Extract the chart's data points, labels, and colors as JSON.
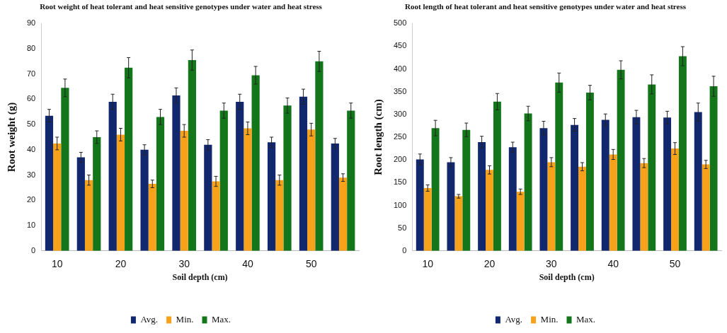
{
  "chart_data": [
    {
      "type": "bar",
      "title": "Root weight of heat tolerant and heat sensitive genotypes under water and heat stress",
      "xlabel": "Soil depth (cm)",
      "ylabel": "Root weight (g)",
      "categories": [
        "10",
        null,
        "20",
        null,
        "30",
        null,
        "40",
        null,
        "50",
        null
      ],
      "ylim": [
        0,
        90
      ],
      "yticks": [
        0,
        10,
        20,
        30,
        40,
        50,
        60,
        70,
        80,
        90
      ],
      "grid": false,
      "legend": "bottom",
      "series": [
        {
          "name": "Avg.",
          "color": "#12286e",
          "values": [
            53.5,
            37,
            59,
            40,
            61.5,
            42,
            59,
            43,
            61,
            42.5
          ],
          "errors": [
            2.5,
            2,
            3,
            2,
            3,
            2,
            3,
            2,
            3,
            2
          ]
        },
        {
          "name": "Min.",
          "color": "#f7a21b",
          "values": [
            42.5,
            28,
            46,
            26.5,
            47.5,
            27.5,
            48.5,
            28,
            48,
            29
          ],
          "errors": [
            2.5,
            2,
            2.5,
            1.5,
            2.5,
            2,
            2.5,
            2,
            2.5,
            1.5
          ]
        },
        {
          "name": "Max.",
          "color": "#13761a",
          "values": [
            64.5,
            45,
            72.5,
            53,
            75.5,
            55.5,
            69.5,
            57.5,
            75,
            55.5
          ],
          "errors": [
            3.5,
            2.5,
            4,
            3,
            4,
            3,
            3.5,
            3,
            4,
            3
          ]
        }
      ]
    },
    {
      "type": "bar",
      "title": "Root length of heat tolerant and heat sensitive genotypes under water and heat stress",
      "xlabel": "Soil depth (cm)",
      "ylabel": "Root length (cm)",
      "categories": [
        "10",
        null,
        "20",
        null,
        "30",
        null,
        "40",
        null,
        "50",
        null
      ],
      "ylim": [
        0,
        500
      ],
      "yticks": [
        0,
        50,
        100,
        150,
        200,
        250,
        300,
        350,
        400,
        450,
        500
      ],
      "grid": false,
      "legend": "bottom",
      "series": [
        {
          "name": "Avg.",
          "color": "#12286e",
          "values": [
            201,
            195,
            239,
            228,
            270,
            277,
            288,
            294,
            293,
            305
          ],
          "errors": [
            12,
            10,
            13,
            11,
            15,
            14,
            13,
            15,
            14,
            20
          ]
        },
        {
          "name": "Min.",
          "color": "#f7a21b",
          "values": [
            138,
            120,
            178,
            130,
            195,
            185,
            212,
            193,
            225,
            190
          ],
          "errors": [
            7,
            4,
            9,
            6,
            10,
            9,
            11,
            10,
            13,
            9
          ]
        },
        {
          "name": "Max.",
          "color": "#13761a",
          "values": [
            270,
            266,
            328,
            302,
            370,
            348,
            398,
            366,
            428,
            362
          ],
          "errors": [
            17,
            15,
            18,
            16,
            21,
            16,
            20,
            21,
            21,
            22
          ]
        }
      ]
    }
  ]
}
